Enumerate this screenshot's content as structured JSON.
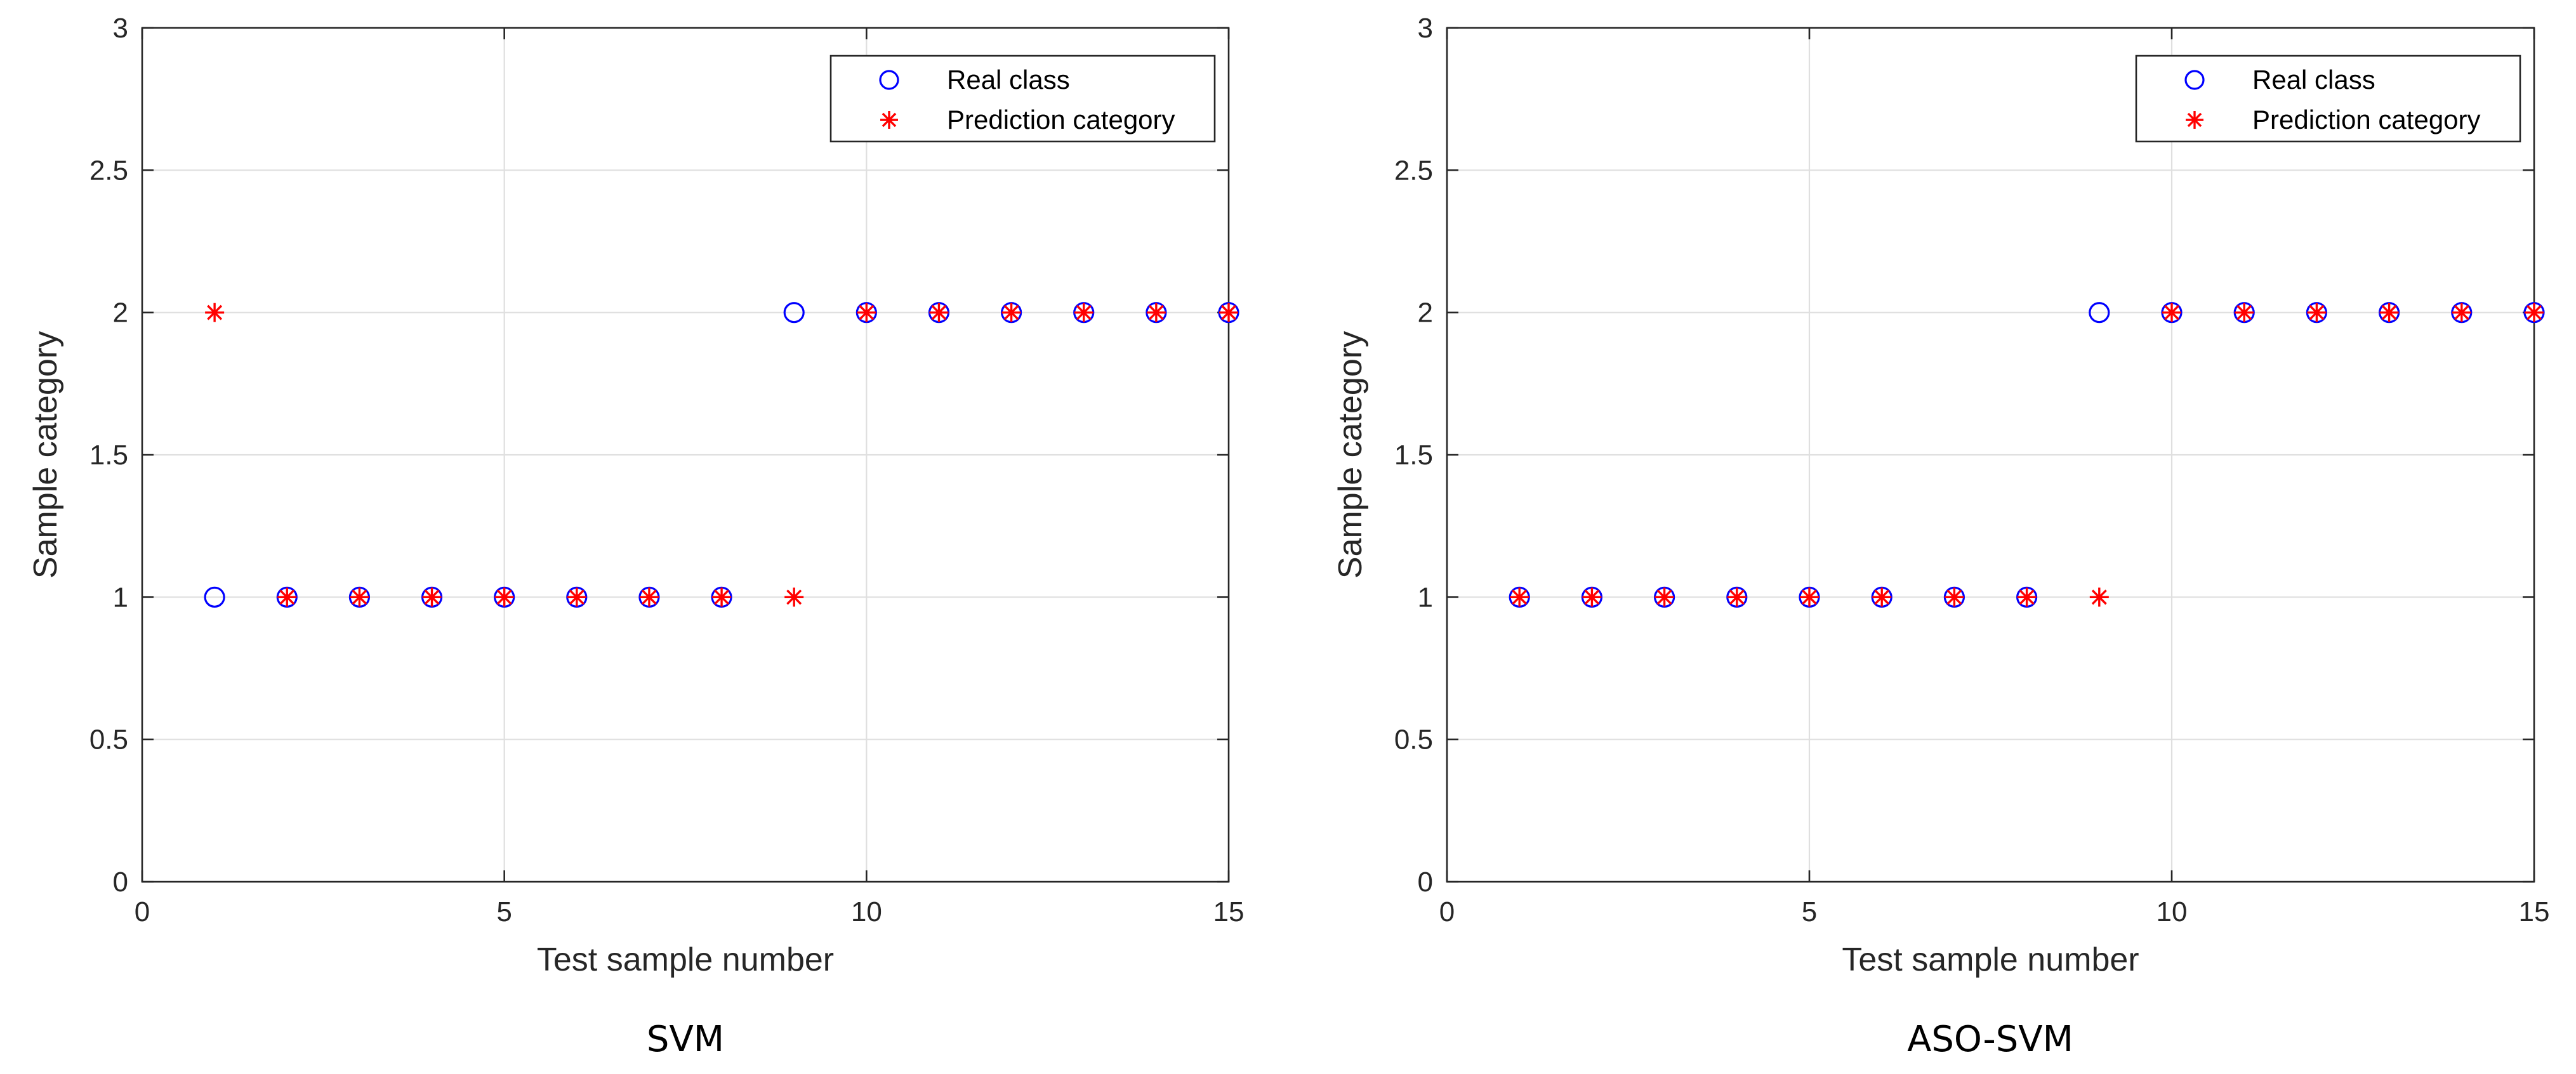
{
  "chart_data": [
    {
      "type": "scatter",
      "caption": "SVM",
      "xlabel": "Test sample number",
      "ylabel": "Sample category",
      "xlim": [
        0,
        15
      ],
      "ylim": [
        0,
        3
      ],
      "xticks": [
        0,
        5,
        10,
        15
      ],
      "xtick_labels": [
        "0",
        "5",
        "10",
        "15"
      ],
      "yticks": [
        0,
        0.5,
        1,
        1.5,
        2,
        2.5,
        3
      ],
      "ytick_labels": [
        "0",
        "0.5",
        "1",
        "1.5",
        "2",
        "2.5",
        "3"
      ],
      "grid": true,
      "legend_position": "top-right",
      "series": [
        {
          "name": "Real class",
          "marker": "circle",
          "color": "#0000ff",
          "x": [
            1,
            2,
            3,
            4,
            5,
            6,
            7,
            8,
            9,
            10,
            11,
            12,
            13,
            14,
            15
          ],
          "y": [
            1,
            1,
            1,
            1,
            1,
            1,
            1,
            1,
            2,
            2,
            2,
            2,
            2,
            2,
            2
          ]
        },
        {
          "name": "Prediction category",
          "marker": "asterisk",
          "color": "#ff0000",
          "x": [
            1,
            2,
            3,
            4,
            5,
            6,
            7,
            8,
            9,
            10,
            11,
            12,
            13,
            14,
            15
          ],
          "y": [
            2,
            1,
            1,
            1,
            1,
            1,
            1,
            1,
            1,
            2,
            2,
            2,
            2,
            2,
            2
          ]
        }
      ]
    },
    {
      "type": "scatter",
      "caption": "ASO-SVM",
      "xlabel": "Test sample number",
      "ylabel": "Sample category",
      "xlim": [
        0,
        15
      ],
      "ylim": [
        0,
        3
      ],
      "xticks": [
        0,
        5,
        10,
        15
      ],
      "xtick_labels": [
        "0",
        "5",
        "10",
        "15"
      ],
      "yticks": [
        0,
        0.5,
        1,
        1.5,
        2,
        2.5,
        3
      ],
      "ytick_labels": [
        "0",
        "0.5",
        "1",
        "1.5",
        "2",
        "2.5",
        "3"
      ],
      "grid": true,
      "legend_position": "top-right",
      "series": [
        {
          "name": "Real class",
          "marker": "circle",
          "color": "#0000ff",
          "x": [
            1,
            2,
            3,
            4,
            5,
            6,
            7,
            8,
            9,
            10,
            11,
            12,
            13,
            14,
            15
          ],
          "y": [
            1,
            1,
            1,
            1,
            1,
            1,
            1,
            1,
            2,
            2,
            2,
            2,
            2,
            2,
            2
          ]
        },
        {
          "name": "Prediction category",
          "marker": "asterisk",
          "color": "#ff0000",
          "x": [
            1,
            2,
            3,
            4,
            5,
            6,
            7,
            8,
            9,
            10,
            11,
            12,
            13,
            14,
            15
          ],
          "y": [
            1,
            1,
            1,
            1,
            1,
            1,
            1,
            1,
            1,
            2,
            2,
            2,
            2,
            2,
            2
          ]
        }
      ]
    }
  ]
}
